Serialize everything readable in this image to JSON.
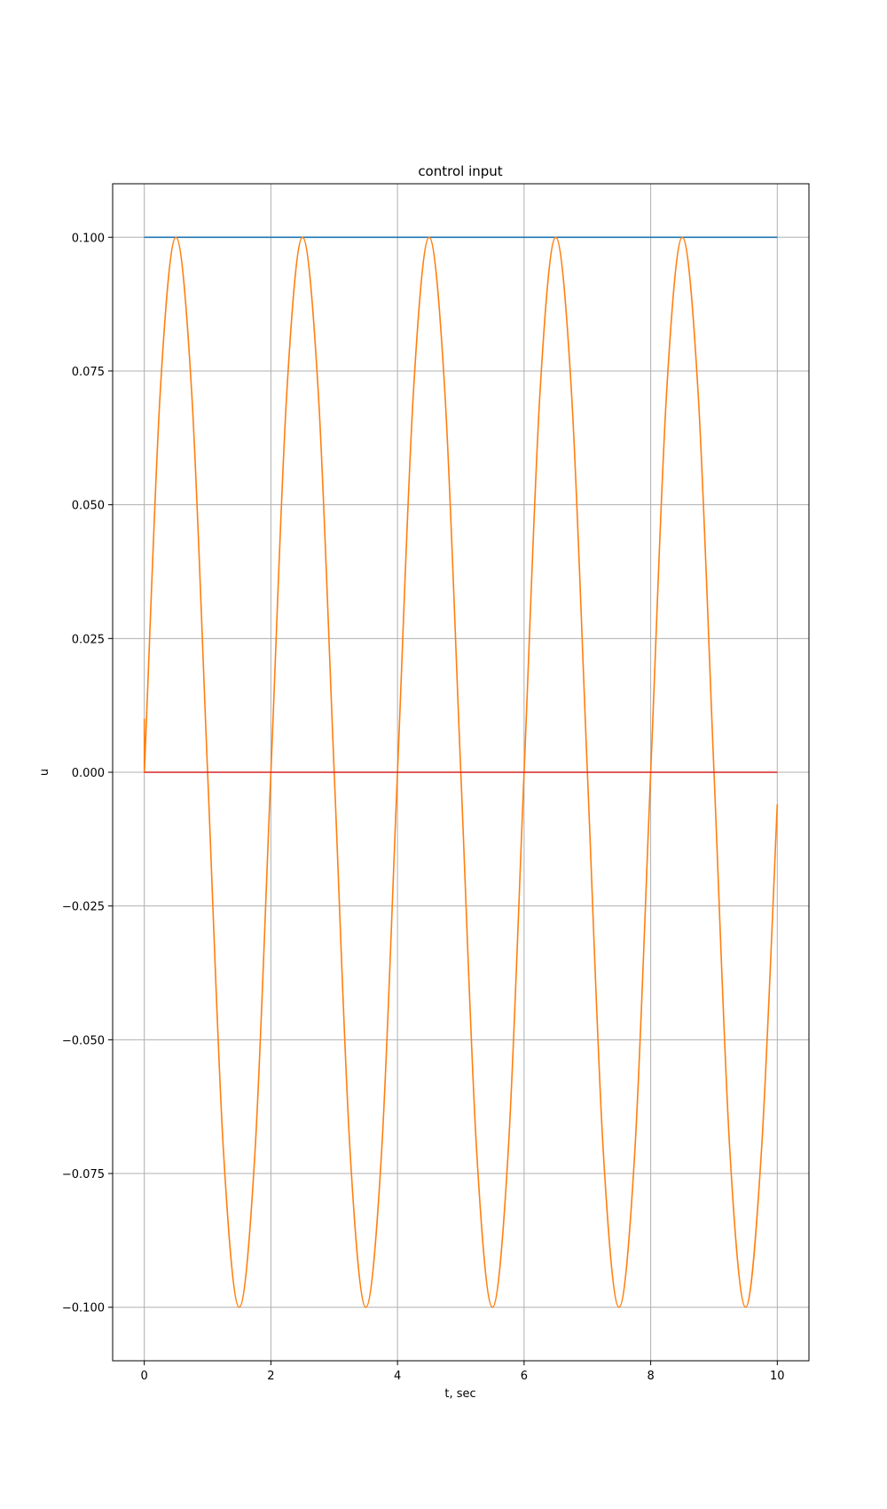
{
  "chart_data": {
    "type": "line",
    "title": "control input",
    "xlabel": "t, sec",
    "ylabel": "u",
    "xlim": [
      -0.5,
      10.5
    ],
    "ylim": [
      -0.11,
      0.11
    ],
    "grid": true,
    "legend": "none",
    "x_ticks": [
      0,
      2,
      4,
      6,
      8,
      10
    ],
    "x_tick_labels": [
      "0",
      "2",
      "4",
      "6",
      "8",
      "10"
    ],
    "y_ticks": [
      0.1,
      0.075,
      0.05,
      0.025,
      0.0,
      -0.025,
      -0.05,
      -0.075,
      -0.1
    ],
    "y_tick_labels": [
      "0.100",
      "0.075",
      "0.050",
      "0.025",
      "0.000",
      "−0.025",
      "−0.050",
      "−0.075",
      "−0.100"
    ],
    "series": [
      {
        "color": "#1f77b4",
        "x": [
          0,
          10
        ],
        "y": [
          0.1,
          0.1
        ]
      },
      {
        "color": "#ff7f0e",
        "x": [
          0,
          0,
          0.25,
          0.5,
          0.75,
          1,
          1.25,
          1.5,
          1.75,
          2,
          2.25,
          2.5,
          2.75,
          3,
          3.25,
          3.5,
          3.75,
          4,
          4.25,
          4.5,
          4.75,
          5,
          5.25,
          5.5,
          5.75,
          6,
          6.25,
          6.5,
          6.75,
          7,
          7.25,
          7.5,
          7.75,
          8,
          8.25,
          8.5,
          8.75,
          9,
          9.25,
          9.5,
          9.75,
          10
        ],
        "y": [
          0.01,
          0.0,
          0.0707,
          0.1,
          0.0707,
          0.0,
          -0.0707,
          -0.1,
          -0.0707,
          0.0,
          0.0707,
          0.1,
          0.0707,
          0.0,
          -0.0707,
          -0.1,
          -0.0707,
          0.0,
          0.0707,
          0.1,
          0.0707,
          0.0,
          -0.0707,
          -0.1,
          -0.0707,
          0.0,
          0.0707,
          0.1,
          0.0707,
          0.0,
          -0.0707,
          -0.1,
          -0.0707,
          0.0,
          0.0707,
          0.1,
          0.0707,
          0.0,
          -0.0707,
          -0.1,
          -0.0707,
          -0.006
        ]
      },
      {
        "color": "#d62728",
        "x": [
          0,
          10
        ],
        "y": [
          0.0,
          0.0
        ]
      }
    ]
  }
}
